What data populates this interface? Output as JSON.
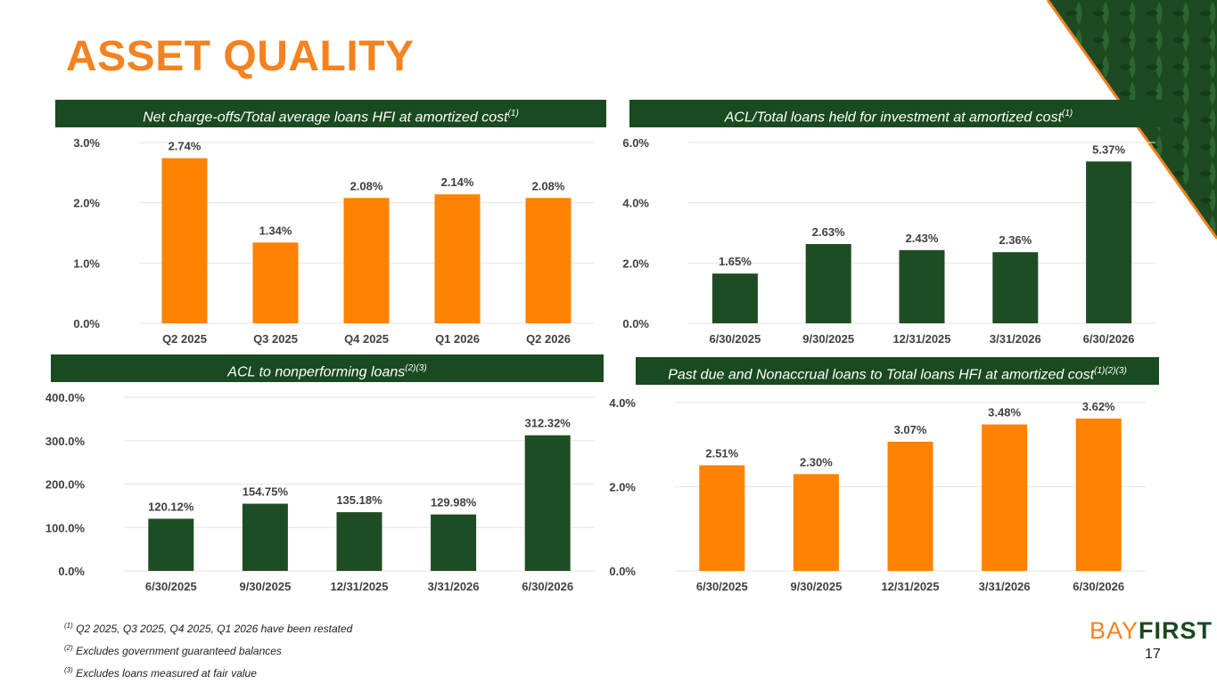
{
  "page": {
    "title": "ASSET QUALITY",
    "page_number": "17",
    "logo": {
      "part1": "BAY",
      "part2": "FIRST"
    },
    "colors": {
      "orange": "#ff8200",
      "green": "#1f4d23",
      "dark_green": "#1a4a20",
      "text": "#404040"
    }
  },
  "footnotes": [
    {
      "mark": "(1)",
      "text": " Q2 2025, Q3 2025, Q4 2025, Q1 2026 have been restated"
    },
    {
      "mark": "(2)",
      "text": " Excludes government guaranteed balances"
    },
    {
      "mark": "(3)",
      "text": " Excludes loans measured at fair value"
    }
  ],
  "panels": [
    {
      "header": "Net charge-offs/Total average loans HFI at amortized cost",
      "sup": "(1)"
    },
    {
      "header": "ACL/Total loans held for investment at amortized cost",
      "sup": "(1)"
    },
    {
      "header": "ACL to nonperforming loans",
      "sup": "(2)(3)"
    },
    {
      "header": "Past due and Nonaccrual loans to Total loans HFI at amortized cost",
      "sup": "(1)(2)(3)"
    }
  ],
  "chart_data": [
    {
      "type": "bar",
      "title": "Net charge-offs/Total average loans HFI at amortized cost",
      "categories": [
        "Q2 2025",
        "Q3 2025",
        "Q4 2025",
        "Q1 2026",
        "Q2 2026"
      ],
      "values": [
        2.74,
        1.34,
        2.08,
        2.14,
        2.08
      ],
      "value_labels": [
        "2.74%",
        "1.34%",
        "2.08%",
        "2.14%",
        "2.08%"
      ],
      "ylim": [
        0,
        3
      ],
      "yticks": [
        0,
        1,
        2,
        3
      ],
      "ytick_labels": [
        "0.0%",
        "1.0%",
        "2.0%",
        "3.0%"
      ],
      "color": "#ff8200",
      "grid": true
    },
    {
      "type": "bar",
      "title": "ACL/Total loans held for investment at amortized cost",
      "categories": [
        "6/30/2025",
        "9/30/2025",
        "12/31/2025",
        "3/31/2026",
        "6/30/2026"
      ],
      "values": [
        1.65,
        2.63,
        2.43,
        2.36,
        5.37
      ],
      "value_labels": [
        "1.65%",
        "2.63%",
        "2.43%",
        "2.36%",
        "5.37%"
      ],
      "ylim": [
        0,
        6
      ],
      "yticks": [
        0,
        2,
        4,
        6
      ],
      "ytick_labels": [
        "0.0%",
        "2.0%",
        "4.0%",
        "6.0%"
      ],
      "color": "#1f4d23",
      "grid": true
    },
    {
      "type": "bar",
      "title": "ACL to nonperforming loans",
      "categories": [
        "6/30/2025",
        "9/30/2025",
        "12/31/2025",
        "3/31/2026",
        "6/30/2026"
      ],
      "values": [
        120.12,
        154.75,
        135.18,
        129.98,
        312.32
      ],
      "value_labels": [
        "120.12%",
        "154.75%",
        "135.18%",
        "129.98%",
        "312.32%"
      ],
      "ylim": [
        0,
        400
      ],
      "yticks": [
        0,
        100,
        200,
        300,
        400
      ],
      "ytick_labels": [
        "0.0%",
        "100.0%",
        "200.0%",
        "300.0%",
        "400.0%"
      ],
      "color": "#1f4d23",
      "grid": true
    },
    {
      "type": "bar",
      "title": "Past due and Nonaccrual loans to Total loans HFI at amortized cost",
      "categories": [
        "6/30/2025",
        "9/30/2025",
        "12/31/2025",
        "3/31/2026",
        "6/30/2026"
      ],
      "values": [
        2.51,
        2.3,
        3.07,
        3.48,
        3.62
      ],
      "value_labels": [
        "2.51%",
        "2.30%",
        "3.07%",
        "3.48%",
        "3.62%"
      ],
      "ylim": [
        0,
        4
      ],
      "yticks": [
        0,
        2,
        4
      ],
      "ytick_labels": [
        "0.0%",
        "2.0%",
        "4.0%"
      ],
      "color": "#ff8200",
      "grid": true
    }
  ]
}
